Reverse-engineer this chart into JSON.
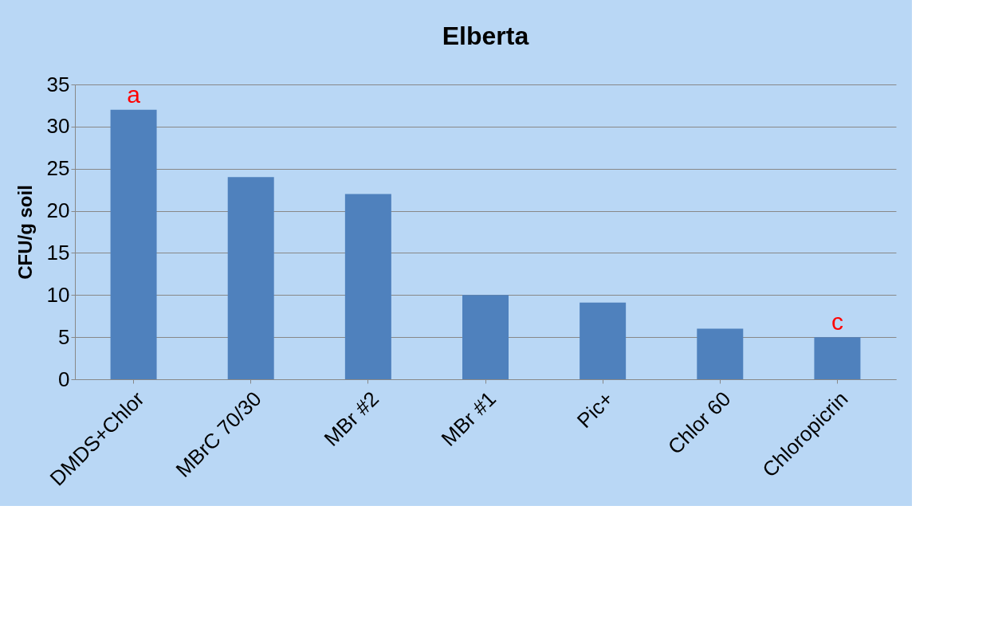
{
  "chart_data": {
    "type": "bar",
    "title": "Elberta",
    "ylabel": "CFU/g soil",
    "categories": [
      "DMDS+Chlor",
      "MBrC 70/30",
      "MBr #2",
      "MBr #1",
      "Pic+",
      "Chlor 60",
      "Chloropicrin"
    ],
    "values": [
      32,
      24,
      22,
      10,
      9.1,
      6,
      5
    ],
    "color": "#4f81bd",
    "ylim": [
      0,
      35
    ],
    "yticks": [
      0,
      5,
      10,
      15,
      20,
      25,
      30,
      35
    ],
    "grid": "y",
    "annotations": [
      {
        "text": "a",
        "x": "DMDS+Chlor",
        "y": 32
      },
      {
        "text": "c",
        "x": "Chloropicrin",
        "y": 5
      }
    ]
  }
}
